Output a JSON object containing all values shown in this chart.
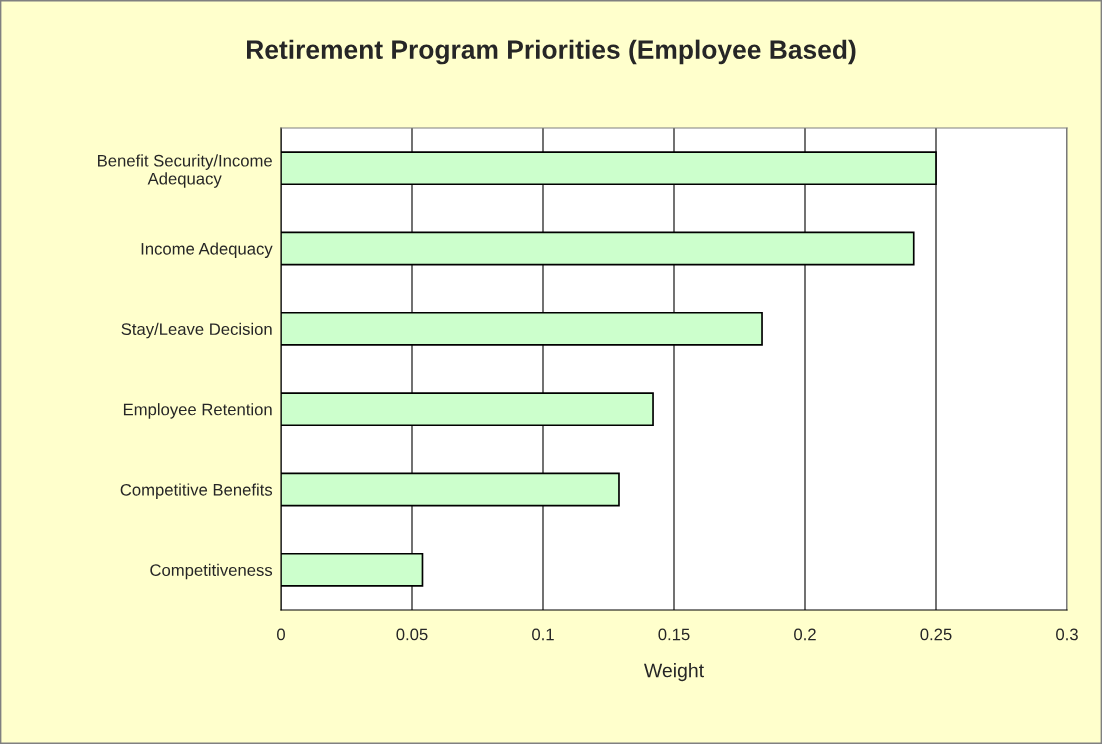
{
  "chart_data": {
    "type": "bar",
    "orientation": "horizontal",
    "title": "Retirement Program Priorities (Employee Based)",
    "xlabel": "Weight",
    "categories": [
      "Benefit Security/Income\nAdequacy",
      "Income Adequacy",
      "Stay/Leave Decision",
      "Employee Retention",
      "Competitive Benefits",
      "Competitiveness"
    ],
    "values": [
      0.25,
      0.2415,
      0.1836,
      0.142,
      0.129,
      0.054
    ],
    "color": "#ccffcc",
    "xlim": [
      0,
      0.3
    ],
    "xticks": [
      0,
      0.05,
      0.1,
      0.15,
      0.2,
      0.25,
      0.3
    ],
    "grid": "x"
  }
}
